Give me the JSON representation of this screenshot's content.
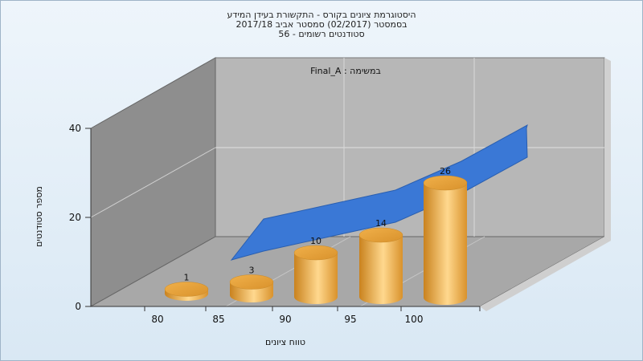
{
  "chart_data": {
    "type": "bar",
    "title_lines": [
      "היסטוגרמת ציונים בקורס - התקשורת בעידן המידע",
      "בסמסטר  (02/2017)  סמסטר אביב 2017/18",
      "סטודנטים רשומים - 56"
    ],
    "annotation": "במשימה : Final_A",
    "xlabel": "טווח ציונים",
    "ylabel": "מספר סטודנטים",
    "categories": [
      "80",
      "85",
      "90",
      "95",
      "100"
    ],
    "values": [
      1,
      3,
      10,
      14,
      26
    ],
    "cumulative_area": [
      10,
      14,
      18,
      26,
      36
    ],
    "yticks": [
      0,
      20,
      40
    ],
    "ylim": [
      0,
      40
    ],
    "colors": {
      "bar": "#e8a640",
      "bar_highlight": "#ffd88e",
      "area": "#3a78d6",
      "wall_back": "#b7b7b7",
      "wall_left": "#8e8e8e",
      "floor": "#a8a8a8"
    }
  }
}
